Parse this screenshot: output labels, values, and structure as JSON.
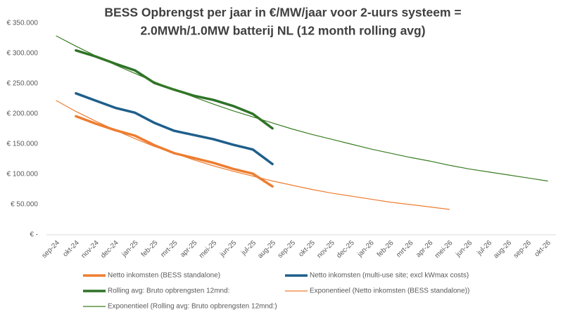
{
  "chart_data": {
    "type": "line",
    "title": [
      "BESS Opbrengst per jaar in €/MW/jaar voor 2-uurs systeem =",
      "2.0MWh/1.0MW batterij NL (12 month rolling avg)"
    ],
    "categories": [
      "sep-24",
      "okt-24",
      "nov-24",
      "dec-24",
      "jan-25",
      "feb-25",
      "mrt-25",
      "apr-25",
      "mei-25",
      "jun-25",
      "jul-25",
      "aug-25",
      "sep-25",
      "okt-25",
      "nov-25",
      "dec-25",
      "jan-26",
      "feb-26",
      "mrt-26",
      "apr-26",
      "mei-26",
      "jun-26",
      "jul-26",
      "aug-26",
      "sep-26",
      "okt-26"
    ],
    "ylim": [
      0,
      350000
    ],
    "yticks": [
      {
        "value": 0,
        "label": "€ -"
      },
      {
        "value": 50000,
        "label": "€ 50.000"
      },
      {
        "value": 100000,
        "label": "€ 100.000"
      },
      {
        "value": 150000,
        "label": "€ 150.000"
      },
      {
        "value": 200000,
        "label": "€ 200.000"
      },
      {
        "value": 250000,
        "label": "€ 250.000"
      },
      {
        "value": 300000,
        "label": "€ 300.000"
      },
      {
        "value": 350000,
        "label": "€ 350.000"
      }
    ],
    "grid": false,
    "legend": "bottom",
    "series": [
      {
        "name": "Netto inkomsten (BESS standalone)",
        "color": "#ed7d31",
        "width": 3.5,
        "values": [
          null,
          196000,
          184000,
          173000,
          164000,
          148000,
          135000,
          127000,
          119000,
          109000,
          101000,
          80000,
          null,
          null,
          null,
          null,
          null,
          null,
          null,
          null,
          null,
          null,
          null,
          null,
          null,
          null
        ]
      },
      {
        "name": "Netto inkomsten (multi-use site; excl kWmax costs)",
        "color": "#1f5f8b",
        "width": 3.5,
        "values": [
          null,
          234000,
          222000,
          210000,
          202000,
          185000,
          172000,
          165000,
          158000,
          149000,
          141000,
          117000,
          null,
          null,
          null,
          null,
          null,
          null,
          null,
          null,
          null,
          null,
          null,
          null,
          null,
          null
        ]
      },
      {
        "name": "Rolling avg: Bruto opbrengsten 12mnd:",
        "color": "#2e7228",
        "width": 3.5,
        "values": [
          null,
          305000,
          295000,
          283000,
          272000,
          251000,
          240000,
          230000,
          223000,
          213000,
          200000,
          176000,
          null,
          null,
          null,
          null,
          null,
          null,
          null,
          null,
          null,
          null,
          null,
          null,
          null,
          null
        ]
      },
      {
        "name": "Exponentieel (Netto inkomsten (BESS standalone))",
        "color": "#ed7d31",
        "width": 1.2,
        "values": [
          222000,
          204000,
          188000,
          173000,
          159000,
          146000,
          135000,
          124000,
          114000,
          105000,
          97000,
          89000,
          82000,
          75000,
          69000,
          64000,
          59000,
          54000,
          50000,
          46000,
          42000,
          null,
          null,
          null,
          null,
          null
        ]
      },
      {
        "name": "Exponentieel (Rolling avg: Bruto opbrengsten 12mnd:)",
        "color": "#3a7d22",
        "width": 1.2,
        "values": [
          329000,
          312000,
          296000,
          281000,
          267000,
          253000,
          240000,
          228000,
          216000,
          205000,
          195000,
          185000,
          175000,
          166000,
          158000,
          150000,
          142000,
          135000,
          128000,
          122000,
          115000,
          109000,
          104000,
          99000,
          94000,
          89000
        ]
      }
    ]
  }
}
